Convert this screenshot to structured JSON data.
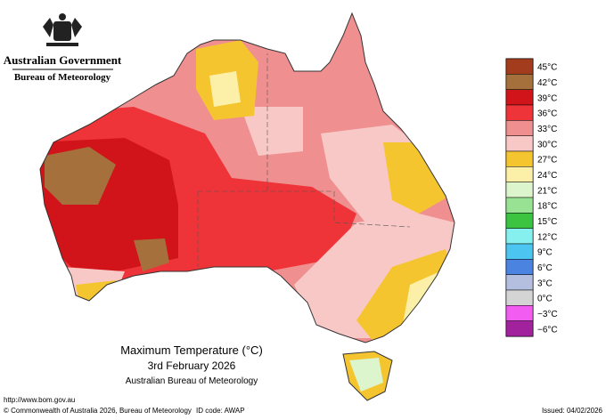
{
  "header": {
    "government": "Australian Government",
    "agency": "Bureau of Meteorology"
  },
  "legend": [
    {
      "label": "45°C",
      "color": "#a33c1c"
    },
    {
      "label": "42°C",
      "color": "#a5703c"
    },
    {
      "label": "39°C",
      "color": "#d0141a"
    },
    {
      "label": "36°C",
      "color": "#ee3438"
    },
    {
      "label": "33°C",
      "color": "#ef8f90"
    },
    {
      "label": "30°C",
      "color": "#f8c8c6"
    },
    {
      "label": "27°C",
      "color": "#f5c530"
    },
    {
      "label": "24°C",
      "color": "#fcf0a8"
    },
    {
      "label": "21°C",
      "color": "#dcf5cc"
    },
    {
      "label": "18°C",
      "color": "#98e294"
    },
    {
      "label": "15°C",
      "color": "#3cc440"
    },
    {
      "label": "12°C",
      "color": "#86f0ee"
    },
    {
      "label": "9°C",
      "color": "#4cc6f0"
    },
    {
      "label": "6°C",
      "color": "#4a84e0"
    },
    {
      "label": "3°C",
      "color": "#b4bfe0"
    },
    {
      "label": "0°C",
      "color": "#d4d4d4"
    },
    {
      "label": "−3°C",
      "color": "#f25cf0"
    },
    {
      "label": "−6°C",
      "color": "#a2229e"
    }
  ],
  "title": {
    "line1": "Maximum Temperature (°C)",
    "line2": "3rd February 2026",
    "line3": "Australian Bureau of Meteorology"
  },
  "footer": {
    "url": "http://www.bom.gov.au",
    "copyright": "© Commonwealth of Australia 2026, Bureau of Meteorology",
    "id_code": "ID code: AWAP",
    "issued": "Issued: 04/02/2026"
  }
}
